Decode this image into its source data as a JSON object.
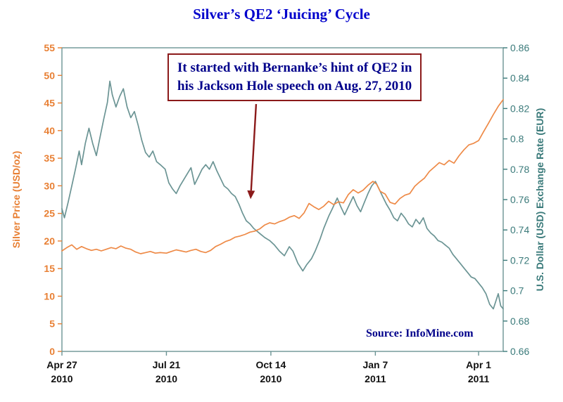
{
  "title": "Silver’s QE2 ‘Juicing’ Cycle",
  "source": "Source: InfoMine.com",
  "annotation": {
    "line1": "It started with Bernanke’s hint of QE2 in",
    "line2": "his Jackson Hole speech on Aug. 27, 2010",
    "arrow": {
      "from_day": 158,
      "from_left_value": 44.8,
      "to_day": 153.5,
      "to_left_value": 27.6
    }
  },
  "colors": {
    "title_blue": "#0000cc",
    "annotation_navy": "#00008b",
    "arrow_maroon": "#8b1a1a",
    "silver_orange": "#ee8a47",
    "usd_teal": "#6b9494",
    "axis_frame": "#6b9494",
    "left_tick_text": "#e87f33",
    "right_tick_text": "#3a7a7a",
    "x_tick_text": "#111111"
  },
  "chart_data": {
    "type": "line",
    "title": "Silver’s QE2 ‘Juicing’ Cycle",
    "x_unit": "days since Apr 27, 2010",
    "x_range": [
      0,
      359
    ],
    "grid": false,
    "legend": "none",
    "left_axis": {
      "label": "Silver Price (USD/oz)",
      "range": [
        0,
        55
      ],
      "ticks": [
        0,
        5,
        10,
        15,
        20,
        25,
        30,
        35,
        40,
        45,
        50,
        55
      ]
    },
    "right_axis": {
      "label": "U.S. Dollar (USD) Exchange Rate (EUR)",
      "range": [
        0.66,
        0.86
      ],
      "tick_values": [
        0.66,
        0.68,
        0.7,
        0.72,
        0.74,
        0.76,
        0.78,
        0.8,
        0.82,
        0.84,
        0.86
      ],
      "tick_labels": [
        "0.66",
        "0.68",
        "0.7",
        "0.72",
        "0.74",
        "0.76",
        "0.78",
        "0.8",
        "0.82",
        "0.84",
        "0.86"
      ]
    },
    "x_axis": {
      "ticks": [
        {
          "day": 0,
          "line1": "Apr 27",
          "line2": "2010"
        },
        {
          "day": 85,
          "line1": "Jul 21",
          "line2": "2010"
        },
        {
          "day": 170,
          "line1": "Oct 14",
          "line2": "2010"
        },
        {
          "day": 255,
          "line1": "Jan 7",
          "line2": "2011"
        },
        {
          "day": 339,
          "line1": "Apr 1",
          "line2": "2011"
        }
      ]
    },
    "series": [
      {
        "name": "U.S. Dollar (USD) Exchange Rate (EUR)",
        "axis": "right",
        "color": "#6b9494",
        "points": [
          [
            0,
            0.754
          ],
          [
            2,
            0.748
          ],
          [
            5,
            0.758
          ],
          [
            8,
            0.769
          ],
          [
            11,
            0.78
          ],
          [
            14,
            0.792
          ],
          [
            16,
            0.783
          ],
          [
            19,
            0.797
          ],
          [
            22,
            0.807
          ],
          [
            25,
            0.797
          ],
          [
            28,
            0.789
          ],
          [
            31,
            0.801
          ],
          [
            34,
            0.813
          ],
          [
            37,
            0.824
          ],
          [
            39,
            0.838
          ],
          [
            41,
            0.829
          ],
          [
            44,
            0.821
          ],
          [
            47,
            0.828
          ],
          [
            50,
            0.833
          ],
          [
            53,
            0.821
          ],
          [
            56,
            0.814
          ],
          [
            59,
            0.818
          ],
          [
            62,
            0.809
          ],
          [
            65,
            0.799
          ],
          [
            68,
            0.791
          ],
          [
            71,
            0.788
          ],
          [
            74,
            0.792
          ],
          [
            77,
            0.785
          ],
          [
            80,
            0.783
          ],
          [
            84,
            0.78
          ],
          [
            87,
            0.771
          ],
          [
            90,
            0.767
          ],
          [
            93,
            0.764
          ],
          [
            96,
            0.769
          ],
          [
            99,
            0.773
          ],
          [
            102,
            0.777
          ],
          [
            105,
            0.781
          ],
          [
            108,
            0.77
          ],
          [
            111,
            0.775
          ],
          [
            114,
            0.78
          ],
          [
            117,
            0.783
          ],
          [
            120,
            0.78
          ],
          [
            123,
            0.785
          ],
          [
            126,
            0.779
          ],
          [
            129,
            0.774
          ],
          [
            132,
            0.769
          ],
          [
            135,
            0.767
          ],
          [
            138,
            0.764
          ],
          [
            141,
            0.762
          ],
          [
            144,
            0.757
          ],
          [
            147,
            0.751
          ],
          [
            150,
            0.746
          ],
          [
            153,
            0.744
          ],
          [
            156,
            0.741
          ],
          [
            159,
            0.739
          ],
          [
            162,
            0.737
          ],
          [
            165,
            0.735
          ],
          [
            169,
            0.733
          ],
          [
            173,
            0.73
          ],
          [
            177,
            0.726
          ],
          [
            181,
            0.723
          ],
          [
            185,
            0.729
          ],
          [
            188,
            0.726
          ],
          [
            192,
            0.718
          ],
          [
            196,
            0.713
          ],
          [
            199,
            0.717
          ],
          [
            203,
            0.721
          ],
          [
            206,
            0.726
          ],
          [
            210,
            0.734
          ],
          [
            213,
            0.741
          ],
          [
            217,
            0.749
          ],
          [
            220,
            0.754
          ],
          [
            224,
            0.761
          ],
          [
            227,
            0.755
          ],
          [
            230,
            0.75
          ],
          [
            234,
            0.757
          ],
          [
            237,
            0.762
          ],
          [
            240,
            0.756
          ],
          [
            243,
            0.752
          ],
          [
            246,
            0.758
          ],
          [
            249,
            0.764
          ],
          [
            252,
            0.769
          ],
          [
            255,
            0.772
          ],
          [
            258,
            0.767
          ],
          [
            261,
            0.762
          ],
          [
            264,
            0.757
          ],
          [
            267,
            0.753
          ],
          [
            270,
            0.748
          ],
          [
            273,
            0.746
          ],
          [
            276,
            0.751
          ],
          [
            279,
            0.748
          ],
          [
            282,
            0.744
          ],
          [
            285,
            0.742
          ],
          [
            288,
            0.747
          ],
          [
            291,
            0.744
          ],
          [
            294,
            0.748
          ],
          [
            297,
            0.741
          ],
          [
            300,
            0.738
          ],
          [
            303,
            0.736
          ],
          [
            306,
            0.733
          ],
          [
            309,
            0.732
          ],
          [
            312,
            0.73
          ],
          [
            315,
            0.728
          ],
          [
            318,
            0.724
          ],
          [
            321,
            0.721
          ],
          [
            324,
            0.718
          ],
          [
            327,
            0.715
          ],
          [
            330,
            0.712
          ],
          [
            333,
            0.709
          ],
          [
            336,
            0.708
          ],
          [
            339,
            0.705
          ],
          [
            342,
            0.702
          ],
          [
            345,
            0.698
          ],
          [
            348,
            0.691
          ],
          [
            351,
            0.688
          ],
          [
            353,
            0.693
          ],
          [
            355,
            0.698
          ],
          [
            357,
            0.69
          ],
          [
            359,
            0.688
          ]
        ]
      },
      {
        "name": "Silver Price (USD/oz)",
        "axis": "left",
        "color": "#ee8a47",
        "points": [
          [
            0,
            18.2
          ],
          [
            4,
            18.8
          ],
          [
            8,
            19.3
          ],
          [
            12,
            18.5
          ],
          [
            16,
            19.0
          ],
          [
            20,
            18.6
          ],
          [
            24,
            18.3
          ],
          [
            28,
            18.5
          ],
          [
            32,
            18.2
          ],
          [
            36,
            18.5
          ],
          [
            40,
            18.8
          ],
          [
            44,
            18.6
          ],
          [
            48,
            19.1
          ],
          [
            52,
            18.7
          ],
          [
            56,
            18.5
          ],
          [
            60,
            18.0
          ],
          [
            64,
            17.7
          ],
          [
            68,
            17.9
          ],
          [
            72,
            18.1
          ],
          [
            76,
            17.8
          ],
          [
            80,
            17.9
          ],
          [
            85,
            17.8
          ],
          [
            89,
            18.1
          ],
          [
            93,
            18.4
          ],
          [
            97,
            18.2
          ],
          [
            101,
            18.0
          ],
          [
            105,
            18.3
          ],
          [
            109,
            18.5
          ],
          [
            113,
            18.1
          ],
          [
            117,
            17.9
          ],
          [
            121,
            18.3
          ],
          [
            125,
            19.0
          ],
          [
            129,
            19.4
          ],
          [
            133,
            19.9
          ],
          [
            137,
            20.2
          ],
          [
            141,
            20.7
          ],
          [
            145,
            20.9
          ],
          [
            149,
            21.2
          ],
          [
            153,
            21.6
          ],
          [
            157,
            21.8
          ],
          [
            161,
            22.2
          ],
          [
            165,
            22.9
          ],
          [
            169,
            23.3
          ],
          [
            173,
            23.1
          ],
          [
            177,
            23.5
          ],
          [
            181,
            23.8
          ],
          [
            185,
            24.3
          ],
          [
            189,
            24.6
          ],
          [
            193,
            24.1
          ],
          [
            197,
            25.1
          ],
          [
            201,
            26.8
          ],
          [
            205,
            26.2
          ],
          [
            209,
            25.7
          ],
          [
            213,
            26.3
          ],
          [
            217,
            27.2
          ],
          [
            221,
            26.6
          ],
          [
            225,
            27.1
          ],
          [
            229,
            26.9
          ],
          [
            233,
            28.4
          ],
          [
            237,
            29.3
          ],
          [
            241,
            28.7
          ],
          [
            245,
            29.2
          ],
          [
            249,
            30.1
          ],
          [
            253,
            30.8
          ],
          [
            256,
            30.3
          ],
          [
            259,
            29.0
          ],
          [
            263,
            28.5
          ],
          [
            267,
            27.0
          ],
          [
            271,
            26.7
          ],
          [
            275,
            27.7
          ],
          [
            279,
            28.3
          ],
          [
            283,
            28.6
          ],
          [
            287,
            29.9
          ],
          [
            291,
            30.7
          ],
          [
            295,
            31.4
          ],
          [
            299,
            32.6
          ],
          [
            303,
            33.4
          ],
          [
            307,
            34.2
          ],
          [
            311,
            33.8
          ],
          [
            315,
            34.6
          ],
          [
            319,
            34.1
          ],
          [
            323,
            35.4
          ],
          [
            327,
            36.5
          ],
          [
            331,
            37.4
          ],
          [
            335,
            37.7
          ],
          [
            339,
            38.2
          ],
          [
            343,
            39.8
          ],
          [
            347,
            41.3
          ],
          [
            351,
            42.9
          ],
          [
            355,
            44.4
          ],
          [
            359,
            45.6
          ]
        ]
      }
    ]
  }
}
